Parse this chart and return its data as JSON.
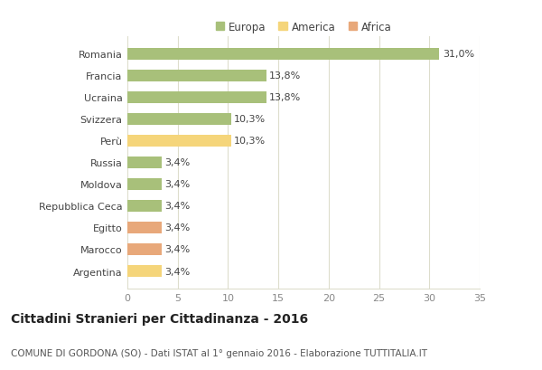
{
  "categories": [
    "Romania",
    "Francia",
    "Ucraina",
    "Svizzera",
    "Perù",
    "Russia",
    "Moldova",
    "Repubblica Ceca",
    "Egitto",
    "Marocco",
    "Argentina"
  ],
  "values": [
    31.0,
    13.8,
    13.8,
    10.3,
    10.3,
    3.4,
    3.4,
    3.4,
    3.4,
    3.4,
    3.4
  ],
  "labels": [
    "31,0%",
    "13,8%",
    "13,8%",
    "10,3%",
    "10,3%",
    "3,4%",
    "3,4%",
    "3,4%",
    "3,4%",
    "3,4%",
    "3,4%"
  ],
  "colors": [
    "#a8c07a",
    "#a8c07a",
    "#a8c07a",
    "#a8c07a",
    "#f5d57a",
    "#a8c07a",
    "#a8c07a",
    "#a8c07a",
    "#e8a87a",
    "#e8a87a",
    "#f5d57a"
  ],
  "legend_labels": [
    "Europa",
    "America",
    "Africa"
  ],
  "legend_colors": [
    "#a8c07a",
    "#f5d57a",
    "#e8a87a"
  ],
  "xlim": [
    0,
    35
  ],
  "xticks": [
    0,
    5,
    10,
    15,
    20,
    25,
    30,
    35
  ],
  "title": "Cittadini Stranieri per Cittadinanza - 2016",
  "subtitle": "COMUNE DI GORDONA (SO) - Dati ISTAT al 1° gennaio 2016 - Elaborazione TUTTITALIA.IT",
  "bg_color": "#ffffff",
  "grid_color": "#ddddcc",
  "title_fontsize": 10,
  "subtitle_fontsize": 7.5,
  "bar_height": 0.55,
  "label_fontsize": 8,
  "ytick_fontsize": 8,
  "xtick_fontsize": 8,
  "legend_fontsize": 8.5
}
